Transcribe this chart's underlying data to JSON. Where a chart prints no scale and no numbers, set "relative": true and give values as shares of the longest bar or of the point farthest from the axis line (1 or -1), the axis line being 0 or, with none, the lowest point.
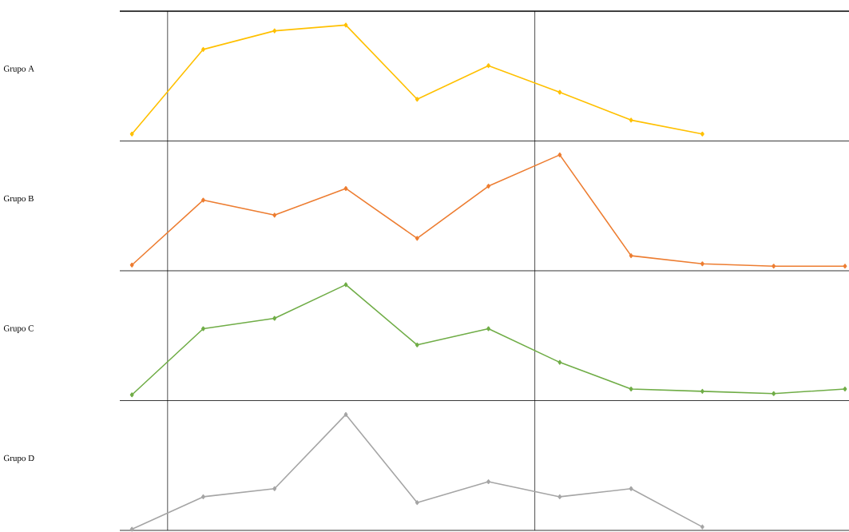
{
  "chart_data": [
    {
      "type": "line",
      "ylabel": "Grupo A",
      "categories": [
        null,
        null,
        null,
        null,
        null,
        null,
        null,
        null,
        null,
        null,
        null
      ],
      "relative": true,
      "marker": "diamond",
      "series": [
        {
          "color": "#ffc000",
          "values": [
            0.06,
            0.79,
            0.95,
            1,
            0.36,
            0.65,
            0.42,
            0.18,
            0.06,
            null,
            null
          ]
        }
      ]
    },
    {
      "type": "line",
      "ylabel": "Grupo B",
      "categories": [
        null,
        null,
        null,
        null,
        null,
        null,
        null,
        null,
        null,
        null,
        null
      ],
      "relative": true,
      "marker": "diamond",
      "series": [
        {
          "color": "#ed7d31",
          "values": [
            0.05,
            0.61,
            0.48,
            0.71,
            0.28,
            0.73,
            1,
            0.13,
            0.06,
            0.04,
            0.04
          ]
        }
      ]
    },
    {
      "type": "line",
      "ylabel": "Grupo C",
      "categories": [
        null,
        null,
        null,
        null,
        null,
        null,
        null,
        null,
        null,
        null,
        null
      ],
      "relative": true,
      "marker": "diamond",
      "series": [
        {
          "color": "#70ad47",
          "values": [
            0.05,
            0.62,
            0.71,
            1,
            0.48,
            0.62,
            0.33,
            0.1,
            0.08,
            0.06,
            0.1
          ]
        }
      ]
    },
    {
      "type": "line",
      "ylabel": "Grupo D",
      "categories": [
        null,
        null,
        null,
        null,
        null,
        null,
        null,
        null,
        null,
        null,
        null
      ],
      "relative": true,
      "marker": "diamond",
      "series": [
        {
          "color": "#a5a5a5",
          "values": [
            0.01,
            0.29,
            0.36,
            1,
            0.24,
            0.42,
            0.29,
            0.36,
            0.03,
            null,
            null
          ]
        }
      ]
    }
  ]
}
